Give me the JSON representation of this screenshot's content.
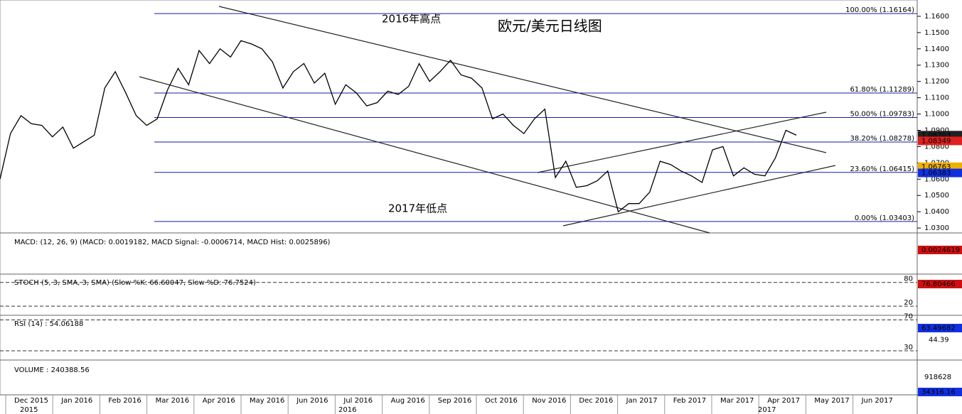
{
  "chart_data": {
    "type": "line",
    "title": "欧元/美元日线图",
    "annotations": [
      "2016年高点",
      "2017年低点"
    ],
    "series": [
      {
        "color": "#000000",
        "values": [
          1.06,
          1.088,
          1.099,
          1.094,
          1.093,
          1.086,
          1.092,
          1.079,
          1.083,
          1.087,
          1.116,
          1.126,
          1.113,
          1.099,
          1.093,
          1.097,
          1.115,
          1.128,
          1.118,
          1.139,
          1.131,
          1.14,
          1.135,
          1.145,
          1.143,
          1.14,
          1.132,
          1.116,
          1.126,
          1.131,
          1.119,
          1.125,
          1.106,
          1.118,
          1.113,
          1.105,
          1.107,
          1.114,
          1.112,
          1.117,
          1.131,
          1.12,
          1.126,
          1.133,
          1.124,
          1.122,
          1.116,
          1.097,
          1.1,
          1.093,
          1.088,
          1.097,
          1.103,
          1.061,
          1.071,
          1.055,
          1.056,
          1.059,
          1.065,
          1.04,
          1.045,
          1.045,
          1.052,
          1.071,
          1.069,
          1.065,
          1.062,
          1.058,
          1.078,
          1.08,
          1.062,
          1.067,
          1.063,
          1.062,
          1.073,
          1.09,
          1.087
        ]
      }
    ],
    "ylim": [
      1.027,
      1.17
    ],
    "yticks": [
      {
        "value": 1.16,
        "label": "1.1600"
      },
      {
        "value": 1.15,
        "label": "1.1500"
      },
      {
        "value": 1.14,
        "label": "1.1400"
      },
      {
        "value": 1.13,
        "label": "1.1300"
      },
      {
        "value": 1.12,
        "label": "1.1200"
      },
      {
        "value": 1.11,
        "label": "1.1100"
      },
      {
        "value": 1.1,
        "label": "1.1000"
      },
      {
        "value": 1.09,
        "label": "1.0900"
      },
      {
        "value": 1.08,
        "label": "1.0800"
      },
      {
        "value": 1.07,
        "label": "1.0700"
      },
      {
        "value": 1.06,
        "label": "1.0600"
      },
      {
        "value": 1.05,
        "label": "1.0500"
      },
      {
        "value": 1.04,
        "label": "1.0400"
      },
      {
        "value": 1.03,
        "label": "1.0300"
      }
    ],
    "fib_levels": [
      {
        "value": 1.16164,
        "label": "100.00% (1.16164)"
      },
      {
        "value": 1.11289,
        "label": "61.80% (1.11289)"
      },
      {
        "value": 1.09783,
        "label": "50.00% (1.09783)"
      },
      {
        "value": 1.08278,
        "label": "38.20% (1.08278)"
      },
      {
        "value": 1.06415,
        "label": "23.60% (1.06415)"
      },
      {
        "value": 1.03403,
        "label": "0.00% (1.03403)"
      }
    ],
    "price_boxes": [
      {
        "value": 1.08703,
        "label": "1.08703",
        "color": "#222222"
      },
      {
        "value": 1.08349,
        "label": "1.08349",
        "color": "#e02020"
      },
      {
        "value": 1.06763,
        "label": "1.06763",
        "color": "#f0b000"
      },
      {
        "value": 1.06383,
        "label": "1.06383",
        "color": "#1030e0"
      }
    ],
    "xticks": [
      "Dec 2015",
      "Jan 2016",
      "Feb 2016",
      "Mar 2016",
      "Apr 2016",
      "May 2016",
      "Jun 2016",
      "Jul 2016",
      "Aug 2016",
      "Sep 2016",
      "Oct 2016",
      "Nov 2016",
      "Dec 2016",
      "Jan 2017",
      "Feb 2017",
      "Mar 2017",
      "Apr 2017",
      "May 2017",
      "Jun 2017"
    ],
    "years": [
      "2015",
      "2016",
      "2017"
    ]
  },
  "indicators": {
    "macd": {
      "label": "MACD: (12, 26, 9) (MACD: 0.0019182, MACD Signal: -0.0006714, MACD Hist: 0.0025896)",
      "box": "0.0024619"
    },
    "stoch": {
      "label": "STOCH (5, 3, SMA, 3, SMA) (Slow %K: 66.60047, Slow %D: 76.7524)",
      "box": "76.80466",
      "ylim": [
        -3,
        101
      ],
      "levels": [
        80,
        20
      ]
    },
    "rsi": {
      "label": "RSI (14) : 54.06188",
      "box": "63.49682",
      "ylim": [
        18,
        76
      ],
      "levels": [
        70,
        30
      ],
      "yticks": [
        44.39
      ]
    },
    "volume": {
      "label": "VOLUME : 240388.56",
      "box": "34316.16",
      "yticks": [
        "918628"
      ]
    }
  }
}
